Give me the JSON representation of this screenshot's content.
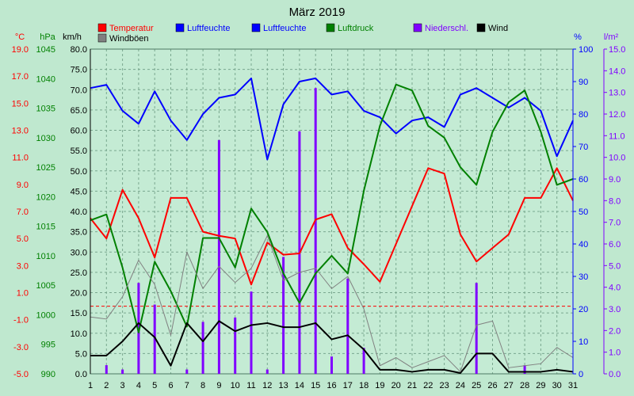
{
  "colors": {
    "background": "#bfe8cf",
    "plot_bg": "#c4ebd4",
    "grid": "#7aa88f",
    "temperature": "#ff0000",
    "humidity": "#0000ff",
    "pressure": "#008000",
    "precip": "#8000ff",
    "wind": "#000000",
    "gust": "#808080"
  },
  "chart_data": {
    "type": "line",
    "title": "März 2019",
    "axis_units": {
      "temperature": "°C",
      "pressure": "hPa",
      "wind": "km/h",
      "humidity": "%",
      "precip": "l/m²"
    },
    "x": [
      1,
      2,
      3,
      4,
      5,
      6,
      7,
      8,
      9,
      10,
      11,
      12,
      13,
      14,
      15,
      16,
      17,
      18,
      19,
      20,
      21,
      22,
      23,
      24,
      25,
      26,
      27,
      28,
      29,
      30,
      31
    ],
    "x_ticks": [
      "1",
      "2",
      "3",
      "4",
      "5",
      "6",
      "7",
      "8",
      "9",
      "10",
      "11",
      "12",
      "13",
      "14",
      "15",
      "16",
      "17",
      "18",
      "19",
      "20",
      "21",
      "22",
      "23",
      "24",
      "25",
      "26",
      "27",
      "28",
      "29",
      "30",
      "31"
    ],
    "legend": [
      {
        "label": "Temperatur",
        "color": "#ff0000"
      },
      {
        "label": "Luftfeuchte",
        "color": "#0000ff"
      },
      {
        "label": "Luftfeuchte",
        "color": "#0000ff"
      },
      {
        "label": "Luftdruck",
        "color": "#008000"
      },
      {
        "label": "Niederschl.",
        "color": "#8000ff"
      },
      {
        "label": "Wind",
        "color": "#000000"
      },
      {
        "label": "Windböen",
        "color": "#808080"
      }
    ],
    "axes": {
      "temperature": {
        "range": [
          -5,
          19
        ],
        "ticks": [
          "19.0",
          "17.0",
          "15.0",
          "13.0",
          "11.0",
          "9.0",
          "7.0",
          "5.0",
          "3.0",
          "1.0",
          "-1.0",
          "-3.0",
          "-5.0"
        ]
      },
      "pressure": {
        "range": [
          990,
          1045
        ],
        "ticks": [
          "1045",
          "1040",
          "1035",
          "1030",
          "1025",
          "1020",
          "1015",
          "1010",
          "1005",
          "1000",
          "995",
          "990"
        ]
      },
      "wind": {
        "range": [
          0,
          80
        ],
        "ticks": [
          "80.0",
          "75.0",
          "70.0",
          "65.0",
          "60.0",
          "55.0",
          "50.0",
          "45.0",
          "40.0",
          "35.0",
          "30.0",
          "25.0",
          "20.0",
          "15.0",
          "10.0",
          "5.0",
          "0.0"
        ]
      },
      "humidity": {
        "range": [
          0,
          100
        ],
        "ticks": [
          "100",
          "90",
          "80",
          "70",
          "60",
          "50",
          "40",
          "30",
          "20",
          "10",
          "0"
        ]
      },
      "precip": {
        "range": [
          0,
          15
        ],
        "ticks": [
          "15.0",
          "14.0",
          "13.0",
          "12.0",
          "11.0",
          "10.0",
          "9.0",
          "8.0",
          "7.0",
          "6.0",
          "5.0",
          "4.0",
          "3.0",
          "2.0",
          "1.0",
          "0.0"
        ]
      }
    },
    "series": [
      {
        "name": "Temperatur",
        "axis": "temperature",
        "values": [
          6.5,
          5.0,
          8.6,
          6.5,
          3.6,
          8.0,
          8.0,
          5.5,
          5.2,
          5.0,
          1.6,
          4.7,
          3.8,
          3.9,
          6.4,
          6.8,
          4.3,
          3.1,
          1.8,
          4.6,
          7.4,
          10.2,
          9.8,
          5.3,
          3.3,
          4.3,
          5.3,
          8.0,
          8.0,
          10.2,
          7.8
        ]
      },
      {
        "name": "Luftfeuchte",
        "axis": "humidity",
        "values": [
          88,
          89,
          81,
          77,
          87,
          78,
          72,
          80,
          85,
          86,
          91,
          66,
          83,
          90,
          91,
          86,
          87,
          81,
          79,
          74,
          78,
          79,
          76,
          86,
          88,
          85,
          82,
          85,
          81,
          67,
          78
        ]
      },
      {
        "name": "Luftdruck",
        "axis": "pressure",
        "values": [
          1016,
          1017,
          1008,
          997,
          1009,
          1004,
          998,
          1013,
          1013,
          1008,
          1018,
          1014,
          1007,
          1002,
          1007,
          1010,
          1007,
          1021,
          1032,
          1039,
          1038,
          1032,
          1030,
          1025,
          1022,
          1031,
          1036,
          1038,
          1031,
          1022,
          1023
        ]
      },
      {
        "name": "Niederschl.",
        "axis": "precip",
        "type": "bar",
        "values": [
          0,
          0.4,
          0.2,
          4.2,
          3.2,
          0,
          0.2,
          2.4,
          10.8,
          2.6,
          3.8,
          0.2,
          5.4,
          11.2,
          13.2,
          0.8,
          4.4,
          1.2,
          0,
          0,
          0,
          0,
          0,
          0,
          4.2,
          0,
          0,
          0.4,
          0,
          0,
          0
        ]
      },
      {
        "name": "Wind",
        "axis": "wind",
        "values": [
          4.5,
          4.5,
          8.0,
          12.5,
          9.0,
          2.0,
          12.5,
          8.0,
          13.0,
          10.5,
          12.0,
          12.5,
          11.5,
          11.5,
          12.5,
          8.5,
          9.5,
          6.0,
          1.0,
          1.0,
          0.5,
          1.0,
          1.0,
          0.2,
          5.0,
          5.0,
          0.5,
          0.5,
          0.5,
          1.0,
          0.5
        ]
      },
      {
        "name": "Windböen",
        "axis": "wind",
        "values": [
          14,
          13.5,
          19,
          28,
          22,
          9.5,
          30,
          21,
          26.5,
          22.5,
          26,
          34,
          23,
          25,
          26,
          21,
          24,
          16,
          2,
          4,
          1.5,
          3,
          4.5,
          0.5,
          12,
          13,
          1.5,
          2,
          2.5,
          6.5,
          4
        ]
      }
    ],
    "reference_line": {
      "axis": "temperature",
      "value": 0
    }
  }
}
